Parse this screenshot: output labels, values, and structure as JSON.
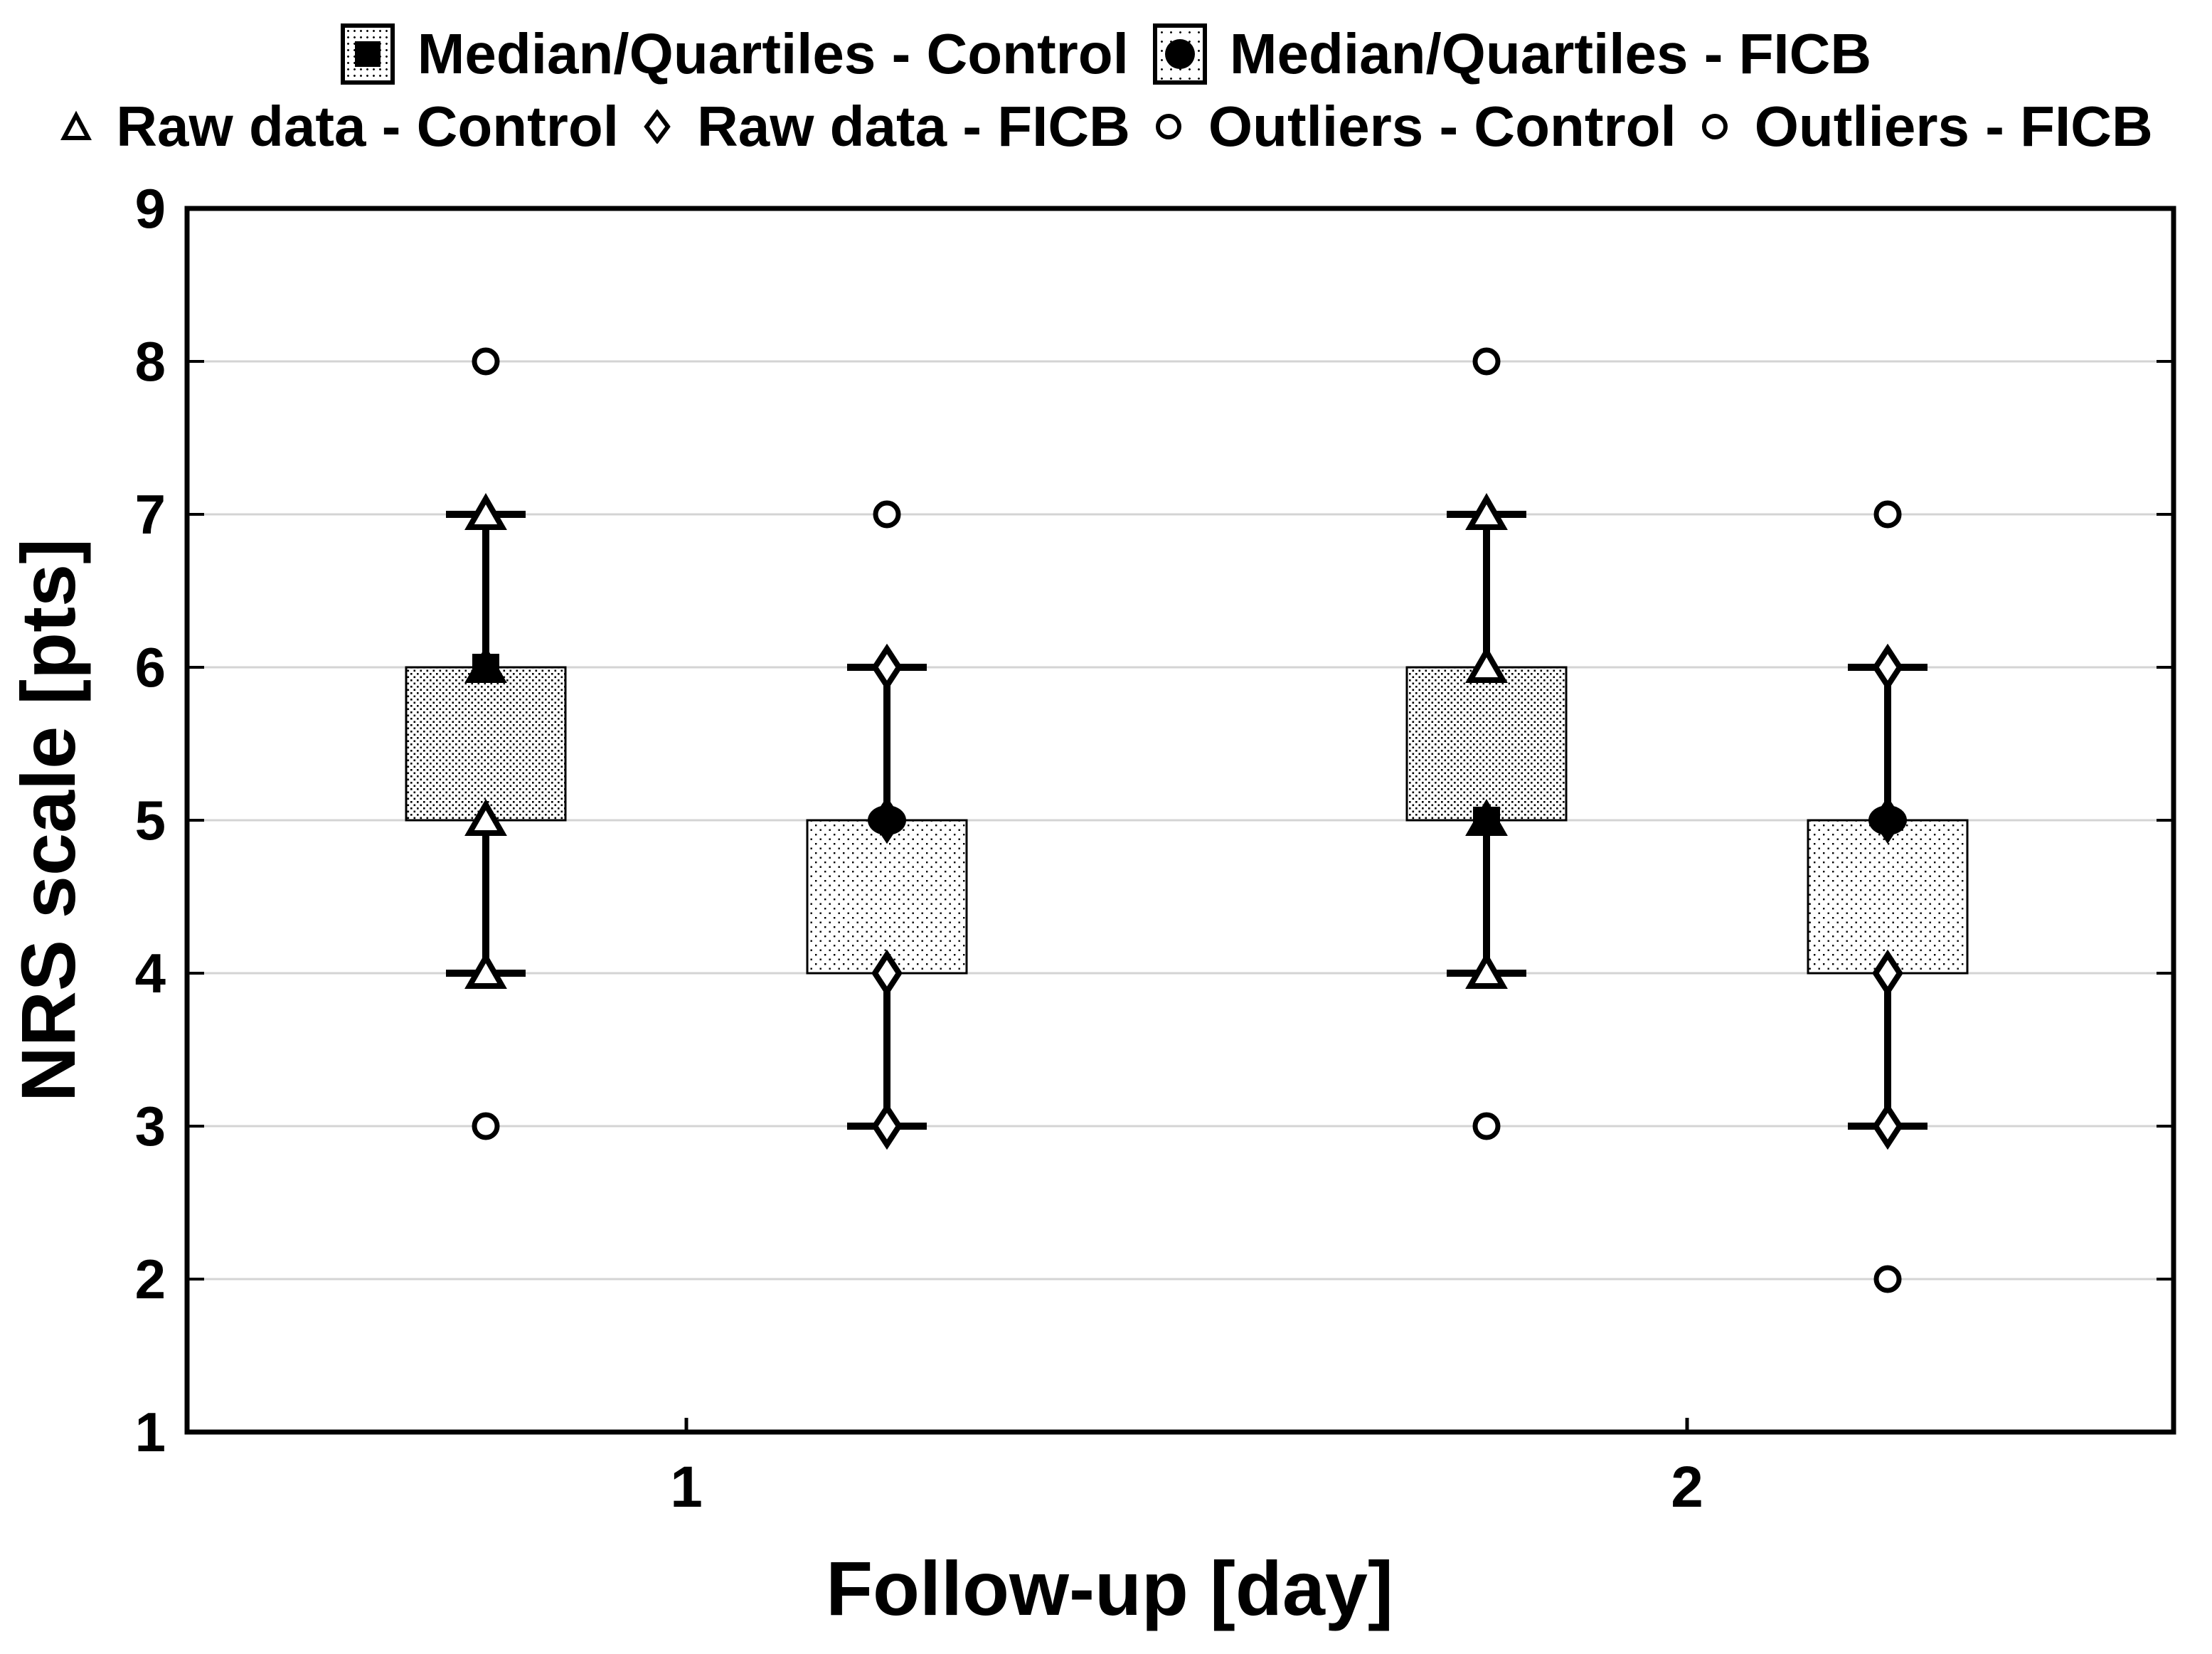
{
  "chart_data": {
    "type": "box",
    "title": "",
    "xlabel": "Follow-up [day]",
    "ylabel": "NRS scale [pts]",
    "ylim": [
      1,
      9
    ],
    "yticks": [
      1,
      2,
      3,
      4,
      5,
      6,
      7,
      8,
      9
    ],
    "gridlines": [
      2,
      3,
      4,
      5,
      6,
      7,
      8
    ],
    "grid_on": true,
    "categories": [
      "1",
      "2"
    ],
    "legend_position": "top",
    "legend": {
      "row1": [
        {
          "marker": "shaded-box-filled-square",
          "label": "Median/Quartiles - Control"
        },
        {
          "marker": "shaded-box-filled-circle",
          "label": "Median/Quartiles - FICB"
        }
      ],
      "row2": [
        {
          "marker": "open-triangle",
          "label": "Raw data - Control"
        },
        {
          "marker": "open-diamond",
          "label": "Raw data - FICB"
        },
        {
          "marker": "open-circle",
          "label": "Outliers - Control"
        },
        {
          "marker": "open-circle",
          "label": "Outliers - FICB"
        }
      ]
    },
    "series": [
      {
        "name": "Control",
        "day": "1",
        "q1": 5,
        "q3": 6,
        "median": 6,
        "whisker_low": 4,
        "whisker_high": 7,
        "raw_data": [
          7,
          6,
          5,
          4
        ],
        "outliers": [
          8,
          3
        ]
      },
      {
        "name": "FICB",
        "day": "1",
        "q1": 4,
        "q3": 5,
        "median": 5,
        "whisker_low": 3,
        "whisker_high": 6,
        "raw_data": [
          6,
          5,
          4,
          3
        ],
        "outliers": [
          7
        ]
      },
      {
        "name": "Control",
        "day": "2",
        "q1": 5,
        "q3": 6,
        "median": 5,
        "whisker_low": 4,
        "whisker_high": 7,
        "raw_data": [
          7,
          6,
          5,
          4
        ],
        "outliers": [
          8,
          3
        ]
      },
      {
        "name": "FICB",
        "day": "2",
        "q1": 4,
        "q3": 5,
        "median": 5,
        "whisker_low": 3,
        "whisker_high": 6,
        "raw_data": [
          6,
          5,
          4,
          3
        ],
        "outliers": [
          7,
          2
        ]
      }
    ],
    "colors": {
      "foreground": "#000000",
      "gridline": "#d4d4d4",
      "background": "#ffffff"
    }
  }
}
